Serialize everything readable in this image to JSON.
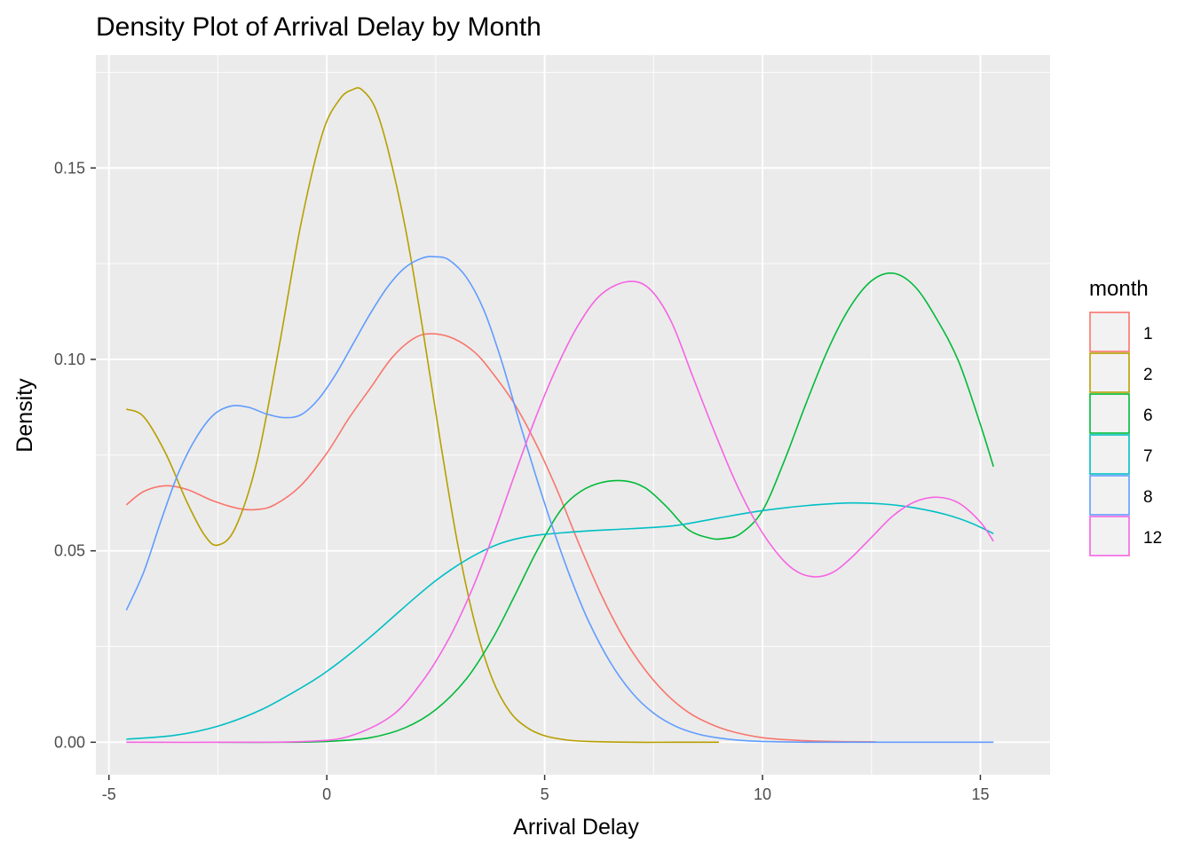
{
  "chart_data": {
    "type": "line",
    "title": "Density Plot of Arrival Delay by Month",
    "xlabel": "Arrival Delay",
    "ylabel": "Density",
    "xlim": [
      -5.3,
      16.6
    ],
    "ylim": [
      -0.0085,
      0.1795
    ],
    "x_ticks": [
      -5,
      0,
      5,
      10,
      15
    ],
    "x_tick_labels": [
      "-5",
      "0",
      "5",
      "10",
      "15"
    ],
    "y_ticks": [
      0,
      0.05,
      0.1,
      0.15
    ],
    "y_tick_labels": [
      "0.00",
      "0.05",
      "0.10",
      "0.15"
    ],
    "grid": true,
    "legend": {
      "title": "month",
      "position": "right"
    },
    "series": [
      {
        "name": "1",
        "color": "#F8766D",
        "x": [
          -4.6,
          -4.2,
          -3.7,
          -3.2,
          -2.6,
          -2.0,
          -1.6,
          -1.2,
          -0.6,
          0.0,
          0.5,
          1.0,
          1.5,
          2.0,
          2.4,
          2.9,
          3.4,
          3.8,
          4.3,
          4.8,
          5.3,
          5.8,
          6.3,
          6.8,
          7.3,
          7.8,
          8.3,
          8.8,
          9.3,
          10.0,
          10.8,
          11.6,
          12.6
        ],
        "y": [
          0.062,
          0.0655,
          0.067,
          0.066,
          0.063,
          0.061,
          0.0608,
          0.062,
          0.067,
          0.0755,
          0.0845,
          0.0925,
          0.1005,
          0.1055,
          0.1067,
          0.1055,
          0.1018,
          0.0965,
          0.0885,
          0.078,
          0.0655,
          0.0515,
          0.0385,
          0.0275,
          0.019,
          0.0125,
          0.0078,
          0.0048,
          0.0028,
          0.0012,
          0.0005,
          0.0002,
          0.0001
        ]
      },
      {
        "name": "2",
        "color": "#B79F00",
        "x": [
          -4.6,
          -4.2,
          -3.7,
          -3.2,
          -2.8,
          -2.5,
          -2.1,
          -1.6,
          -1.1,
          -0.6,
          -0.1,
          0.3,
          0.6,
          0.8,
          1.1,
          1.4,
          1.8,
          2.2,
          2.6,
          3.0,
          3.4,
          3.8,
          4.2,
          4.6,
          5.0,
          5.5,
          6.0,
          7.0,
          8.0,
          9.0
        ],
        "y": [
          0.087,
          0.085,
          0.0755,
          0.0625,
          0.054,
          0.0515,
          0.056,
          0.0735,
          0.103,
          0.135,
          0.159,
          0.168,
          0.1705,
          0.1705,
          0.166,
          0.155,
          0.1345,
          0.108,
          0.079,
          0.052,
          0.031,
          0.0165,
          0.008,
          0.0038,
          0.0017,
          0.0006,
          0.0002,
          0.0,
          0.0,
          0.0
        ]
      },
      {
        "name": "6",
        "color": "#00BA38",
        "x": [
          -2.5,
          -1.0,
          0.0,
          1.0,
          1.8,
          2.5,
          3.2,
          3.8,
          4.3,
          4.8,
          5.3,
          5.7,
          6.2,
          6.8,
          7.3,
          7.8,
          8.3,
          8.8,
          9.1,
          9.5,
          10.0,
          10.5,
          11.0,
          11.5,
          12.0,
          12.5,
          13.0,
          13.5,
          14.0,
          14.5,
          15.0,
          15.3
        ],
        "y": [
          0.0,
          0.0,
          0.0002,
          0.0012,
          0.0038,
          0.0085,
          0.0165,
          0.027,
          0.038,
          0.0495,
          0.0595,
          0.0645,
          0.0675,
          0.0683,
          0.0665,
          0.0615,
          0.0555,
          0.0533,
          0.0532,
          0.0545,
          0.0605,
          0.0735,
          0.0885,
          0.1025,
          0.1135,
          0.1205,
          0.1225,
          0.119,
          0.1105,
          0.0995,
          0.083,
          0.072
        ]
      },
      {
        "name": "7",
        "color": "#00BFC4",
        "x": [
          -4.6,
          -3.5,
          -2.5,
          -1.5,
          -0.5,
          0.0,
          0.5,
          1.0,
          1.5,
          2.0,
          2.5,
          3.0,
          3.5,
          4.0,
          4.5,
          5.0,
          6.0,
          7.0,
          8.0,
          9.0,
          10.0,
          11.0,
          12.0,
          12.8,
          13.5,
          14.2,
          14.8,
          15.3
        ],
        "y": [
          0.0008,
          0.0018,
          0.0042,
          0.0085,
          0.0148,
          0.0185,
          0.0228,
          0.0275,
          0.0325,
          0.0375,
          0.0422,
          0.0462,
          0.0495,
          0.052,
          0.0535,
          0.0543,
          0.0552,
          0.0558,
          0.0566,
          0.0586,
          0.0605,
          0.0618,
          0.0625,
          0.0622,
          0.0612,
          0.0595,
          0.0572,
          0.0545
        ]
      },
      {
        "name": "8",
        "color": "#619CFF",
        "x": [
          -4.6,
          -4.2,
          -3.8,
          -3.4,
          -3.0,
          -2.6,
          -2.2,
          -1.8,
          -1.4,
          -1.0,
          -0.6,
          -0.2,
          0.2,
          0.6,
          1.0,
          1.4,
          1.8,
          2.2,
          2.5,
          2.8,
          3.2,
          3.6,
          4.0,
          4.4,
          4.8,
          5.2,
          5.6,
          6.0,
          6.5,
          7.0,
          7.5,
          8.0,
          8.5,
          9.0,
          9.5,
          10.0,
          10.5,
          11.0,
          12.0,
          13.0,
          14.0,
          15.3
        ],
        "y": [
          0.0345,
          0.0445,
          0.058,
          0.0705,
          0.0795,
          0.0855,
          0.0878,
          0.0875,
          0.0858,
          0.0848,
          0.0855,
          0.0895,
          0.096,
          0.104,
          0.112,
          0.119,
          0.124,
          0.1265,
          0.1268,
          0.126,
          0.1215,
          0.113,
          0.1,
          0.0845,
          0.0695,
          0.0555,
          0.0428,
          0.0318,
          0.021,
          0.013,
          0.0076,
          0.0042,
          0.0022,
          0.0011,
          0.0005,
          0.0002,
          0.0001,
          0.0,
          0.0,
          0.0,
          0.0,
          0.0
        ]
      },
      {
        "name": "12",
        "color": "#F564E3",
        "x": [
          -4.6,
          -2.0,
          -0.5,
          0.5,
          1.5,
          2.2,
          2.8,
          3.3,
          3.8,
          4.3,
          4.8,
          5.3,
          5.8,
          6.3,
          6.9,
          7.4,
          7.9,
          8.4,
          8.9,
          9.4,
          9.9,
          10.4,
          10.8,
          11.2,
          11.6,
          12.0,
          12.5,
          13.0,
          13.5,
          14.0,
          14.5,
          15.0,
          15.3
        ],
        "y": [
          0.0,
          0.0,
          0.0002,
          0.0015,
          0.007,
          0.016,
          0.027,
          0.039,
          0.0535,
          0.0695,
          0.085,
          0.0985,
          0.1095,
          0.117,
          0.1203,
          0.1185,
          0.11,
          0.0955,
          0.081,
          0.0675,
          0.0565,
          0.0485,
          0.0445,
          0.0432,
          0.0443,
          0.0478,
          0.0535,
          0.0592,
          0.0628,
          0.064,
          0.0625,
          0.0575,
          0.0525
        ]
      }
    ]
  }
}
